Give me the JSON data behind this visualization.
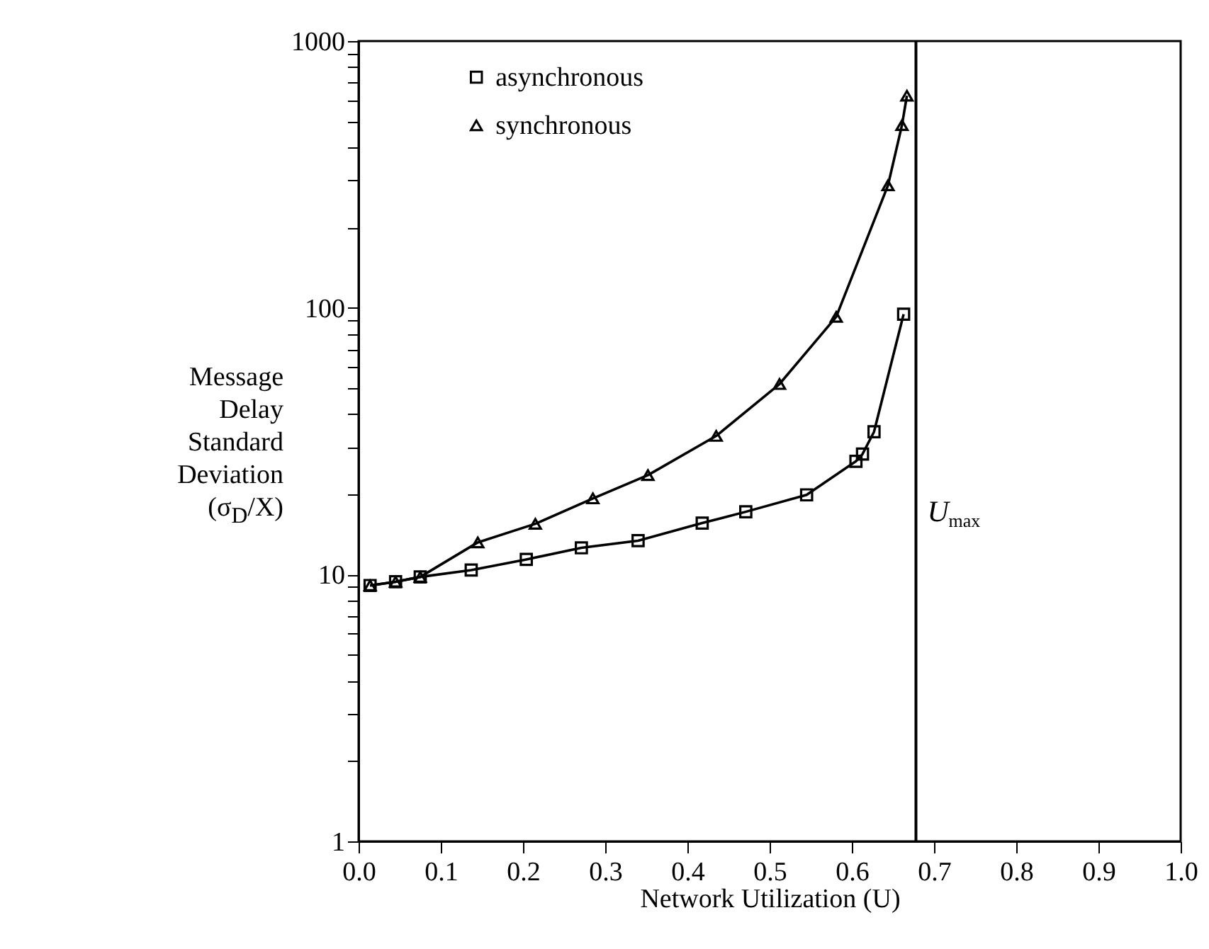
{
  "chart_data": {
    "type": "line",
    "xlabel": "Network Utilization (U)",
    "ylabel": "Message Delay Standard Deviation (σ$_{D}$/X)",
    "series": [
      {
        "name": "asynchronous",
        "color": "#000000",
        "marker": "square",
        "x": [
          0.014,
          0.045,
          0.075,
          0.137,
          0.204,
          0.271,
          0.34,
          0.418,
          0.471,
          0.545,
          0.605,
          0.613,
          0.627,
          0.663
        ],
        "values": [
          9.1,
          9.4,
          9.8,
          10.4,
          11.4,
          12.6,
          13.4,
          15.6,
          17.2,
          19.9,
          26.6,
          28.3,
          34.3,
          94.7
        ]
      },
      {
        "name": "synchronous",
        "color": "#000000",
        "marker": "triangle",
        "x": [
          0.014,
          0.045,
          0.075,
          0.145,
          0.215,
          0.285,
          0.352,
          0.435,
          0.512,
          0.581,
          0.644,
          0.661,
          0.667
        ],
        "values": [
          9.1,
          9.4,
          9.8,
          13.2,
          15.5,
          19.3,
          23.6,
          33.1,
          51.8,
          92.5,
          288,
          484,
          624
        ]
      }
    ],
    "log": "y",
    "xlim": [
      0,
      1
    ],
    "ylim": [
      1,
      1000
    ],
    "xticks": [
      {
        "value": 0,
        "label": "0.0"
      },
      {
        "value": 0.1,
        "label": "0.1"
      },
      {
        "value": 0.2,
        "label": "0.2"
      },
      {
        "value": 0.3,
        "label": "0.3"
      },
      {
        "value": 0.4,
        "label": "0.4"
      },
      {
        "value": 0.5,
        "label": "0.5"
      },
      {
        "value": 0.6,
        "label": "0.6"
      },
      {
        "value": 0.7,
        "label": "0.7"
      },
      {
        "value": 0.8,
        "label": "0.8"
      },
      {
        "value": 0.9,
        "label": "0.9"
      },
      {
        "value": 1,
        "label": "1.0"
      }
    ],
    "yticks": [
      1,
      {
        "value": 2,
        "label": null
      },
      {
        "value": 3,
        "label": null
      },
      {
        "value": 4,
        "label": null
      },
      {
        "value": 5,
        "label": null
      },
      {
        "value": 6,
        "label": null
      },
      {
        "value": 7,
        "label": null
      },
      {
        "value": 8,
        "label": null
      },
      {
        "value": 9,
        "label": null
      },
      10,
      {
        "value": 20,
        "label": null
      },
      {
        "value": 30,
        "label": null
      },
      {
        "value": 40,
        "label": null
      },
      {
        "value": 50,
        "label": null
      },
      {
        "value": 60,
        "label": null
      },
      {
        "value": 70,
        "label": null
      },
      {
        "value": 80,
        "label": null
      },
      {
        "value": 90,
        "label": null
      },
      100,
      {
        "value": 200,
        "label": null
      },
      {
        "value": 300,
        "label": null
      },
      {
        "value": 400,
        "label": null
      },
      {
        "value": 500,
        "label": null
      },
      {
        "value": 600,
        "label": null
      },
      {
        "value": 700,
        "label": null
      },
      {
        "value": 800,
        "label": null
      },
      {
        "value": 900,
        "label": null
      },
      1000
    ],
    "ref_lines": [
      {
        "axis": "x",
        "value": 0.678,
        "label": "U$_{max}$"
      }
    ],
    "grid": false,
    "legend": "top left",
    "line_style": "solid"
  }
}
